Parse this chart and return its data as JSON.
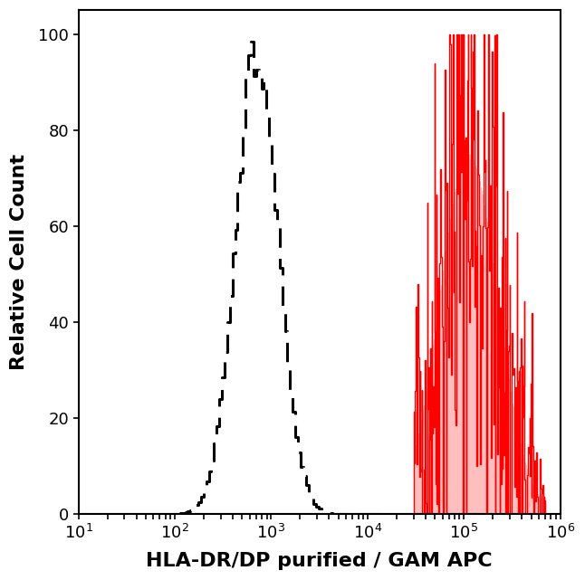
{
  "title": "",
  "xlabel": "HLA-DR/DP purified / GAM APC",
  "ylabel": "Relative Cell Count",
  "xlim_log": [
    10,
    1000000
  ],
  "ylim": [
    0,
    105
  ],
  "yticks": [
    0,
    20,
    40,
    60,
    80,
    100
  ],
  "background_color": "#ffffff",
  "plot_bg_color": "#ffffff",
  "dashed_color": "#000000",
  "red_fill_color": "#ff0000",
  "red_fill_alpha": 0.25,
  "dashed_peak_log": 2.85,
  "dashed_sigma_log": 0.22,
  "dashed_amplitude": 97,
  "red_peak_log": 5.05,
  "red_sigma_log": 0.3,
  "red_amplitude": 75,
  "red_start_log": 4.48,
  "red_end_log": 5.85,
  "xlabel_fontsize": 16,
  "ylabel_fontsize": 16,
  "tick_fontsize": 13,
  "spine_linewidth": 1.5,
  "baseline_color": "#cc0000",
  "baseline_linewidth": 1.5
}
